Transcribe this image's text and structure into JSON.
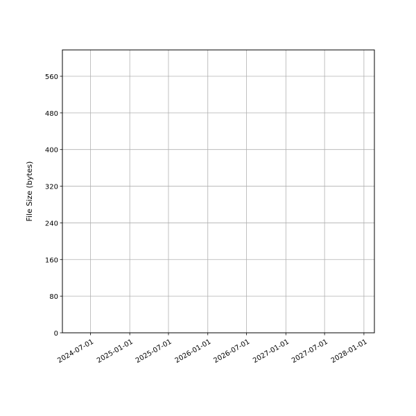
{
  "chart_data": {
    "type": "line",
    "title": "",
    "xlabel": "",
    "ylabel": "File Size (bytes)",
    "x_type": "date",
    "xlim": [
      "2024-02-21",
      "2028-02-19"
    ],
    "ylim": [
      0,
      617.5
    ],
    "x_ticks": [
      "2024-07-01",
      "2025-01-01",
      "2025-07-01",
      "2026-01-01",
      "2026-07-01",
      "2027-01-01",
      "2027-07-01",
      "2028-01-01"
    ],
    "y_ticks": [
      0,
      80,
      160,
      240,
      320,
      400,
      480,
      560
    ],
    "grid": true,
    "grid_color": "#b0b0b0",
    "series": []
  }
}
